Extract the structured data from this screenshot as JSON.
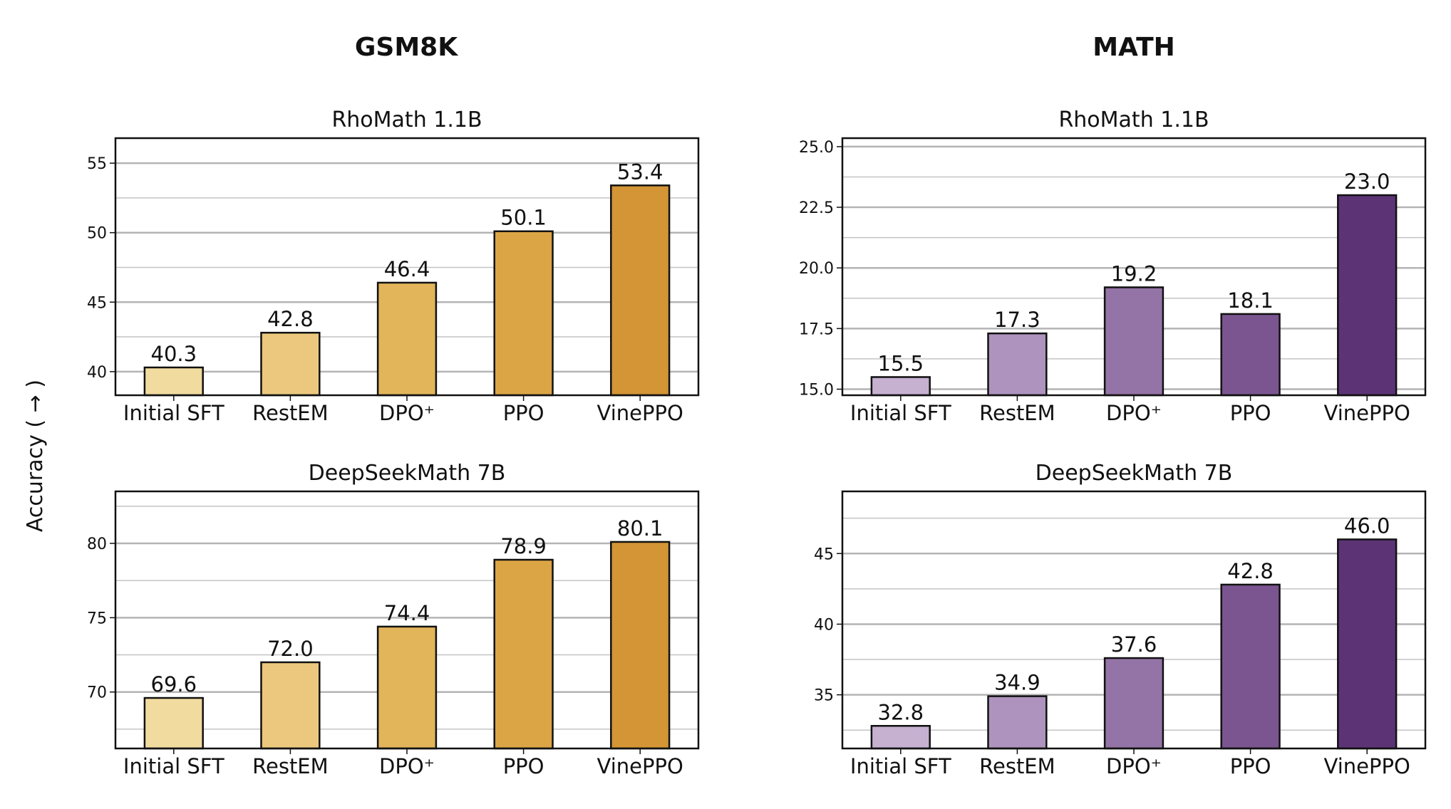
{
  "figure": {
    "column_titles": [
      "GSM8K",
      "MATH"
    ],
    "ylabel": "Accuracy ( → )"
  },
  "chart_data": [
    {
      "id": "gsm8k-rhomath",
      "type": "bar",
      "title": "RhoMath 1.1B",
      "categories": [
        "Initial SFT",
        "RestEM",
        "DPO⁺",
        "PPO",
        "VinePPO"
      ],
      "values": [
        40.3,
        42.8,
        46.4,
        50.1,
        53.4
      ],
      "value_labels": [
        "40.3",
        "42.8",
        "46.4",
        "50.1",
        "53.4"
      ],
      "ylim": [
        38.3,
        56.8
      ],
      "ticks": [
        40,
        45,
        50,
        55
      ],
      "tick_labels": [
        "40",
        "45",
        "50",
        "55"
      ],
      "minor_grid": [
        42.5,
        47.5,
        52.5
      ],
      "colors": [
        "#F1DB9F",
        "#EBC87D",
        "#E2B55A",
        "#DBA545",
        "#D39535"
      ]
    },
    {
      "id": "math-rhomath",
      "type": "bar",
      "title": "RhoMath 1.1B",
      "categories": [
        "Initial SFT",
        "RestEM",
        "DPO⁺",
        "PPO",
        "VinePPO"
      ],
      "values": [
        15.5,
        17.3,
        19.2,
        18.1,
        23.0
      ],
      "value_labels": [
        "15.5",
        "17.3",
        "19.2",
        "18.1",
        "23.0"
      ],
      "ylim": [
        14.75,
        25.35
      ],
      "ticks": [
        15.0,
        17.5,
        20.0,
        22.5,
        25.0
      ],
      "tick_labels": [
        "15.0",
        "17.5",
        "20.0",
        "22.5",
        "25.0"
      ],
      "minor_grid": [
        16.25,
        18.75,
        21.25,
        23.75
      ],
      "colors": [
        "#C6B1D1",
        "#AD93BD",
        "#9474A6",
        "#7A5590",
        "#5C3475"
      ]
    },
    {
      "id": "gsm8k-deepseek",
      "type": "bar",
      "title": "DeepSeekMath 7B",
      "categories": [
        "Initial SFT",
        "RestEM",
        "DPO⁺",
        "PPO",
        "VinePPO"
      ],
      "values": [
        69.6,
        72.0,
        74.4,
        78.9,
        80.1
      ],
      "value_labels": [
        "69.6",
        "72.0",
        "74.4",
        "78.9",
        "80.1"
      ],
      "ylim": [
        66.2,
        83.5
      ],
      "ticks": [
        70,
        75,
        80
      ],
      "tick_labels": [
        "70",
        "75",
        "80"
      ],
      "minor_grid": [
        67.5,
        72.5,
        77.5,
        82.5
      ],
      "colors": [
        "#F1DB9F",
        "#EBC87D",
        "#E2B55A",
        "#DBA545",
        "#D39535"
      ]
    },
    {
      "id": "math-deepseek",
      "type": "bar",
      "title": "DeepSeekMath 7B",
      "categories": [
        "Initial SFT",
        "RestEM",
        "DPO⁺",
        "PPO",
        "VinePPO"
      ],
      "values": [
        32.8,
        34.9,
        37.6,
        42.8,
        46.0
      ],
      "value_labels": [
        "32.8",
        "34.9",
        "37.6",
        "42.8",
        "46.0"
      ],
      "ylim": [
        31.2,
        49.4
      ],
      "ticks": [
        35,
        40,
        45
      ],
      "tick_labels": [
        "35",
        "40",
        "45"
      ],
      "minor_grid": [
        32.5,
        37.5,
        42.5,
        47.5
      ],
      "colors": [
        "#C6B1D1",
        "#AD93BD",
        "#9474A6",
        "#7A5590",
        "#5C3475"
      ]
    }
  ]
}
